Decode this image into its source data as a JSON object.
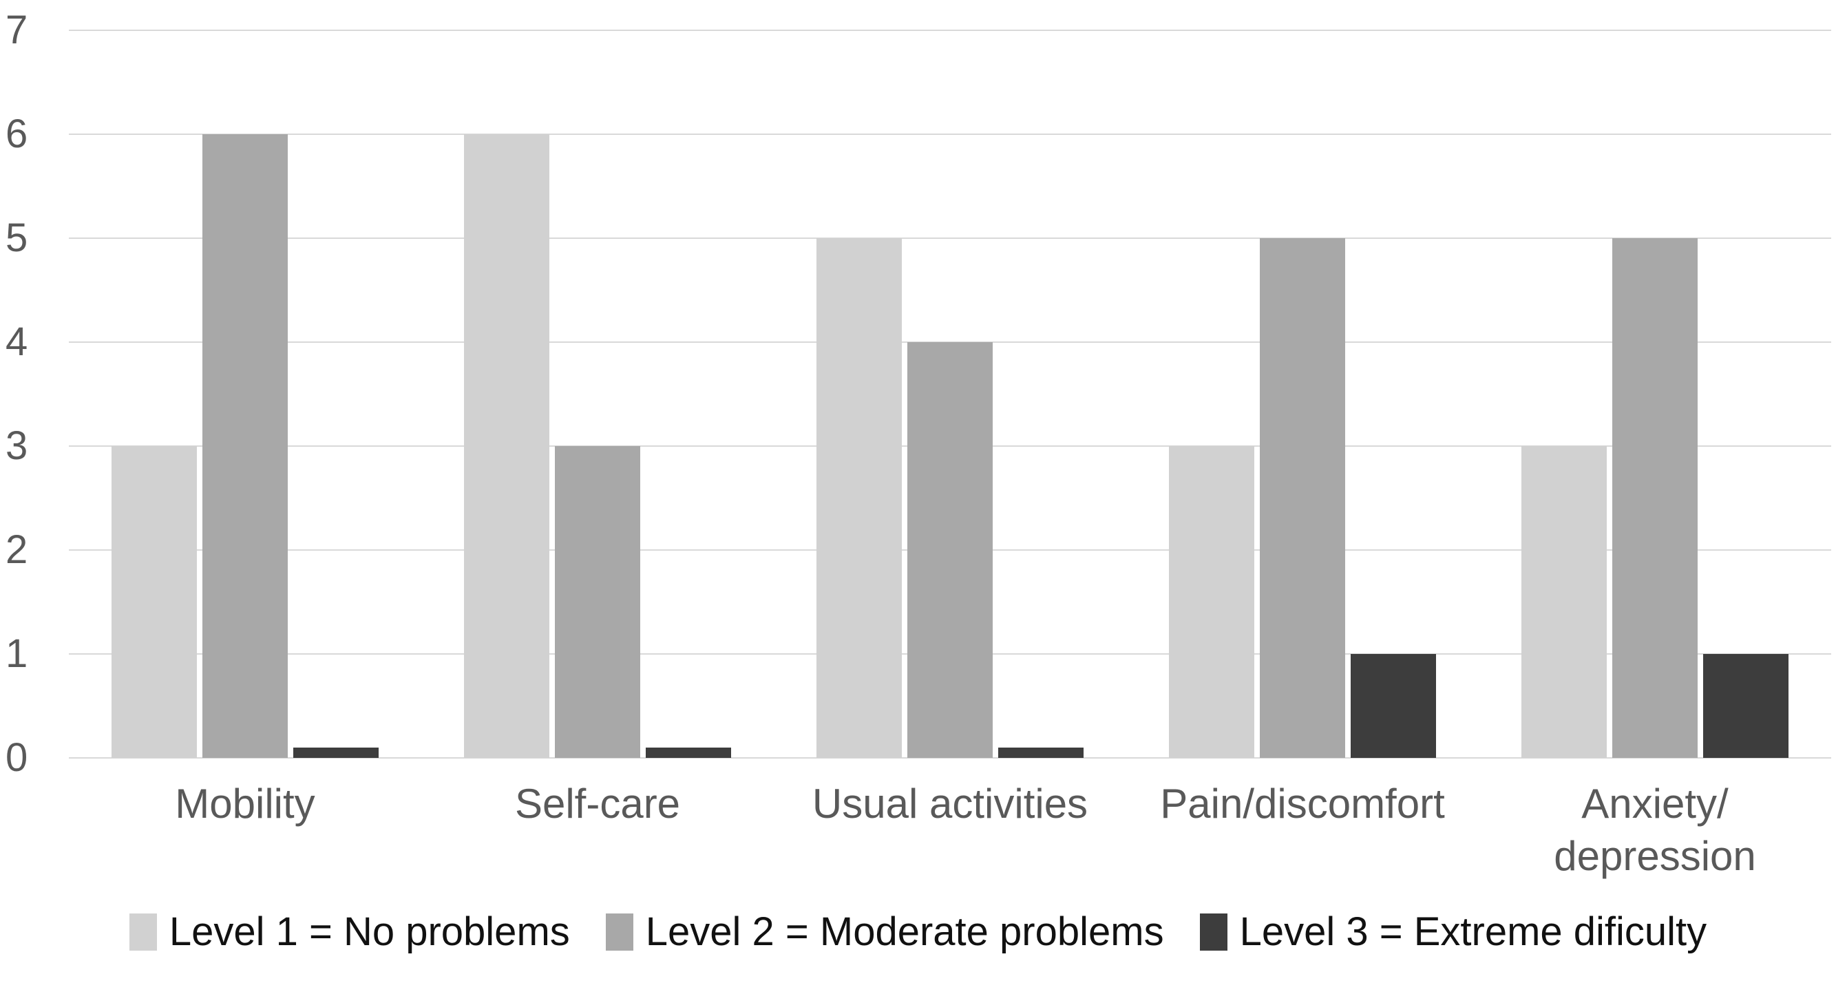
{
  "chart_data": {
    "type": "bar",
    "title": "",
    "xlabel": "",
    "ylabel": "",
    "categories": [
      "Mobility",
      "Self-care",
      "Usual activities",
      "Pain/discomfort",
      "Anxiety/\ndepression"
    ],
    "series": [
      {
        "name": "Level 1 = No problems",
        "color": "#d1d1d1",
        "values": [
          3,
          6,
          5,
          3,
          3
        ]
      },
      {
        "name": "Level 2 = Moderate problems",
        "color": "#a8a8a8",
        "values": [
          6,
          3,
          4,
          5,
          5
        ]
      },
      {
        "name": "Level 3 = Extreme dificulty",
        "color": "#3d3d3d",
        "values": [
          0.1,
          0.1,
          0.1,
          1,
          1
        ]
      }
    ],
    "ylim": [
      0,
      7
    ],
    "yticks": [
      0,
      1,
      2,
      3,
      4,
      5,
      6,
      7
    ],
    "grid": true,
    "legend_position": "bottom"
  },
  "colors": {
    "background": "#ffffff",
    "gridline": "#d9d9d9",
    "axis_text": "#595959",
    "legend_text": "#111111"
  }
}
